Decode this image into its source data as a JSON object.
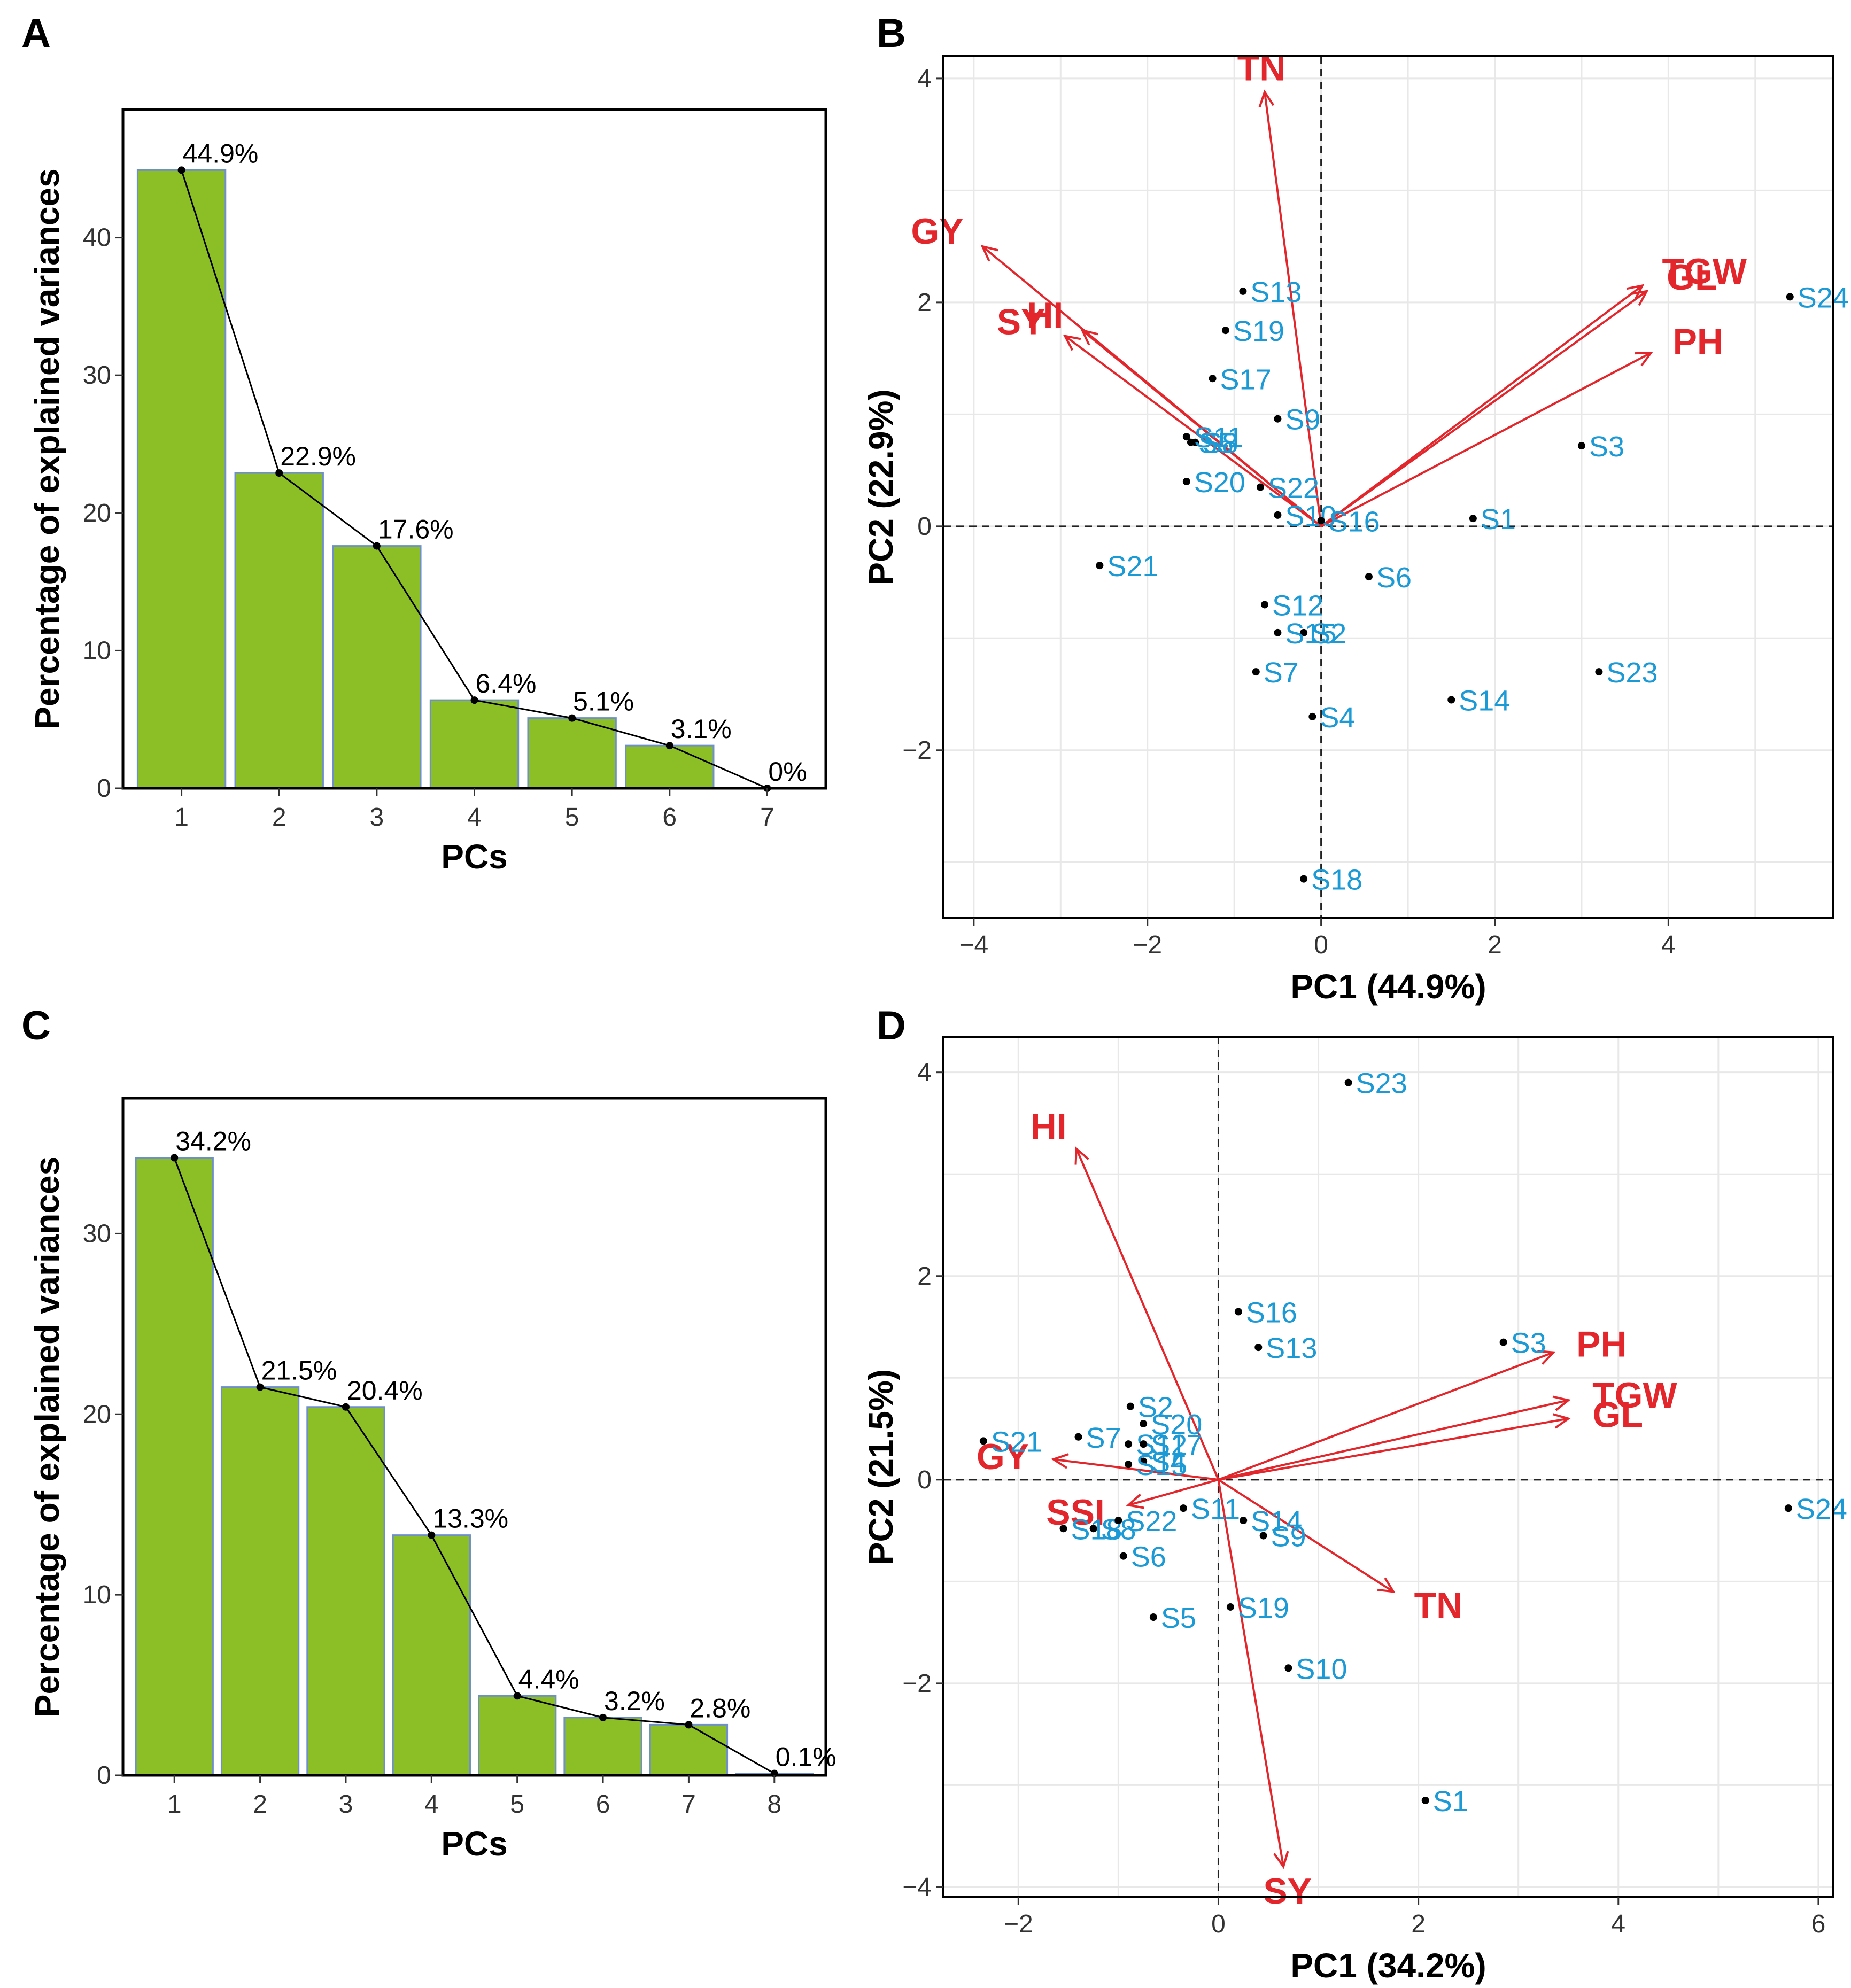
{
  "colors": {
    "bar_fill": "#8cbf26",
    "bar_stroke": "#6f8fc9",
    "line": "#000000",
    "grid": "#e8e8e8",
    "sample": "#1b9ad6",
    "vector": "#e3262b"
  },
  "chart_data": [
    {
      "panel": "A",
      "type": "bar",
      "categories": [
        "1",
        "2",
        "3",
        "4",
        "5",
        "6",
        "7"
      ],
      "values": [
        44.9,
        22.9,
        17.6,
        6.4,
        5.1,
        3.1,
        0
      ],
      "labels": [
        "44.9%",
        "22.9%",
        "17.6%",
        "6.4%",
        "5.1%",
        "3.1%",
        "0%"
      ],
      "xlabel": "PCs",
      "ylabel": "Percentage of explained variances",
      "yticks": [
        0,
        10,
        20,
        30,
        40
      ],
      "ylim": [
        0,
        49.3
      ]
    },
    {
      "panel": "B",
      "type": "scatter",
      "xlabel": "PC1 (44.9%)",
      "ylabel": "PC2 (22.9%)",
      "xlim": [
        -4.35,
        5.9
      ],
      "ylim": [
        -3.5,
        4.2
      ],
      "xticks": [
        -4,
        -2,
        0,
        2,
        4
      ],
      "yticks": [
        -2,
        0,
        2,
        4
      ],
      "points": [
        {
          "label": "S1",
          "x": 1.75,
          "y": 0.07
        },
        {
          "label": "S2",
          "x": -0.2,
          "y": -0.95
        },
        {
          "label": "S3",
          "x": 3.0,
          "y": 0.72
        },
        {
          "label": "S4",
          "x": -0.1,
          "y": -1.7
        },
        {
          "label": "S5",
          "x": -1.5,
          "y": 0.75
        },
        {
          "label": "S6",
          "x": 0.55,
          "y": -0.45
        },
        {
          "label": "S7",
          "x": -0.75,
          "y": -1.3
        },
        {
          "label": "S8",
          "x": -1.45,
          "y": 0.75
        },
        {
          "label": "S9",
          "x": -0.5,
          "y": 0.96
        },
        {
          "label": "S10",
          "x": -0.5,
          "y": 0.1
        },
        {
          "label": "S11",
          "x": -1.55,
          "y": 0.8
        },
        {
          "label": "S12",
          "x": -0.65,
          "y": -0.7
        },
        {
          "label": "S13",
          "x": -0.9,
          "y": 2.1
        },
        {
          "label": "S14",
          "x": 1.5,
          "y": -1.55
        },
        {
          "label": "S15",
          "x": -0.5,
          "y": -0.95
        },
        {
          "label": "S16",
          "x": 0.0,
          "y": 0.05
        },
        {
          "label": "S17",
          "x": -1.25,
          "y": 1.32
        },
        {
          "label": "S18",
          "x": -0.2,
          "y": -3.15
        },
        {
          "label": "S19",
          "x": -1.1,
          "y": 1.75
        },
        {
          "label": "S20",
          "x": -1.55,
          "y": 0.4
        },
        {
          "label": "S21",
          "x": -2.55,
          "y": -0.35
        },
        {
          "label": "S22",
          "x": -0.7,
          "y": 0.35
        },
        {
          "label": "S23",
          "x": 3.2,
          "y": -1.3
        },
        {
          "label": "S24",
          "x": 5.4,
          "y": 2.05
        }
      ],
      "vectors": [
        {
          "label": "TN",
          "x": -0.65,
          "y": 3.88
        },
        {
          "label": "GY",
          "x": -3.9,
          "y": 2.5
        },
        {
          "label": "HI",
          "x": -2.75,
          "y": 1.75
        },
        {
          "label": "SY",
          "x": -2.95,
          "y": 1.7
        },
        {
          "label": "TGW",
          "x": 3.7,
          "y": 2.15
        },
        {
          "label": "GL",
          "x": 3.75,
          "y": 2.1
        },
        {
          "label": "PH",
          "x": 3.8,
          "y": 1.55
        }
      ]
    },
    {
      "panel": "C",
      "type": "bar",
      "categories": [
        "1",
        "2",
        "3",
        "4",
        "5",
        "6",
        "7",
        "8"
      ],
      "values": [
        34.2,
        21.5,
        20.4,
        13.3,
        4.4,
        3.2,
        2.8,
        0.1
      ],
      "labels": [
        "34.2%",
        "21.5%",
        "20.4%",
        "13.3%",
        "4.4%",
        "3.2%",
        "2.8%",
        "0.1%"
      ],
      "xlabel": "PCs",
      "ylabel": "Percentage of explained variances",
      "yticks": [
        0,
        10,
        20,
        30
      ],
      "ylim": [
        0,
        37.5
      ]
    },
    {
      "panel": "D",
      "type": "scatter",
      "xlabel": "PC1 (34.2%)",
      "ylabel": "PC2 (21.5%)",
      "xlim": [
        -2.75,
        6.15
      ],
      "ylim": [
        -4.1,
        4.35
      ],
      "xticks": [
        -2,
        0,
        2,
        4,
        6
      ],
      "yticks": [
        -4,
        -2,
        0,
        2,
        4
      ],
      "points": [
        {
          "label": "S1",
          "x": 2.07,
          "y": -3.15
        },
        {
          "label": "S2",
          "x": -0.88,
          "y": 0.72
        },
        {
          "label": "S3",
          "x": 2.85,
          "y": 1.35
        },
        {
          "label": "S4",
          "x": -0.75,
          "y": 0.18
        },
        {
          "label": "S5",
          "x": -0.65,
          "y": -1.35
        },
        {
          "label": "S6",
          "x": -0.95,
          "y": -0.75
        },
        {
          "label": "S7",
          "x": -1.4,
          "y": 0.42
        },
        {
          "label": "S8",
          "x": -1.25,
          "y": -0.48
        },
        {
          "label": "S9",
          "x": 0.45,
          "y": -0.55
        },
        {
          "label": "S10",
          "x": 0.7,
          "y": -1.85
        },
        {
          "label": "S11",
          "x": -0.35,
          "y": -0.28
        },
        {
          "label": "S12",
          "x": -0.9,
          "y": 0.35
        },
        {
          "label": "S13",
          "x": 0.4,
          "y": 1.3
        },
        {
          "label": "S14",
          "x": 0.25,
          "y": -0.4
        },
        {
          "label": "S15",
          "x": -0.9,
          "y": 0.15
        },
        {
          "label": "S16",
          "x": 0.2,
          "y": 1.65
        },
        {
          "label": "S17",
          "x": -0.75,
          "y": 0.35
        },
        {
          "label": "S18",
          "x": -1.55,
          "y": -0.48
        },
        {
          "label": "S19",
          "x": 0.12,
          "y": -1.25
        },
        {
          "label": "S20",
          "x": -0.75,
          "y": 0.55
        },
        {
          "label": "S21",
          "x": -2.35,
          "y": 0.38
        },
        {
          "label": "S22",
          "x": -1.0,
          "y": -0.4
        },
        {
          "label": "S23",
          "x": 1.3,
          "y": 3.9
        },
        {
          "label": "S24",
          "x": 5.7,
          "y": -0.28
        }
      ],
      "vectors": [
        {
          "label": "HI",
          "x": -1.42,
          "y": 3.25
        },
        {
          "label": "GY",
          "x": -1.65,
          "y": 0.2
        },
        {
          "label": "SSI",
          "x": -0.9,
          "y": -0.25
        },
        {
          "label": "PH",
          "x": 3.35,
          "y": 1.25
        },
        {
          "label": "TGW",
          "x": 3.5,
          "y": 0.78
        },
        {
          "label": "GL",
          "x": 3.5,
          "y": 0.6
        },
        {
          "label": "TN",
          "x": 1.75,
          "y": -1.1
        },
        {
          "label": "SY",
          "x": 0.65,
          "y": -3.8
        }
      ]
    }
  ]
}
